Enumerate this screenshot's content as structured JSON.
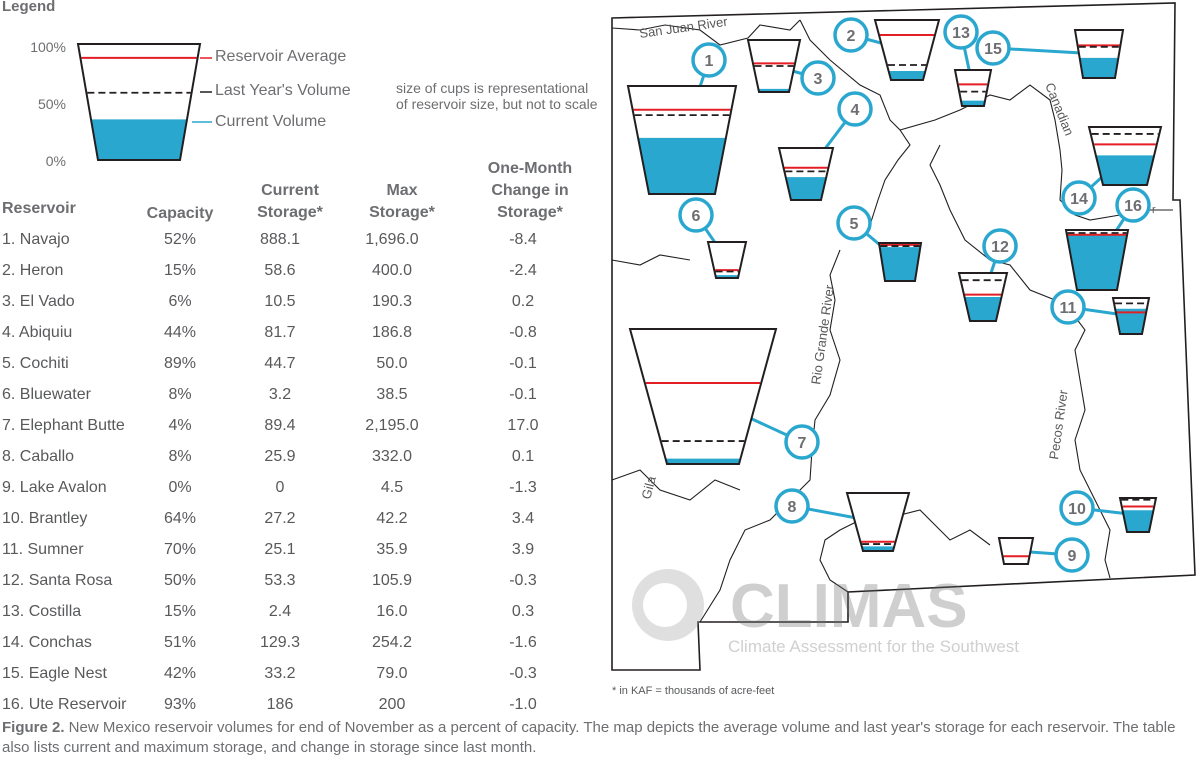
{
  "legend": {
    "title": "Legend",
    "pct_labels": [
      "100%",
      "50%",
      "0%"
    ],
    "reservoir_average": "Reservoir Average",
    "last_year": "Last Year's Volume",
    "current": "Current Volume",
    "note": "size of cups is representational of reservoir size, but not to scale",
    "sample_current_fraction": 0.35,
    "sample_average_fraction": 0.88,
    "sample_last_year_fraction": 0.58
  },
  "table": {
    "headers": {
      "reservoir": "Reservoir",
      "capacity": "Capacity",
      "current_1": "Current",
      "current_2": "Storage*",
      "max_1": "Max",
      "max_2": "Storage*",
      "change_1": "One-Month",
      "change_2": "Change in",
      "change_3": "Storage*"
    }
  },
  "chart_data": {
    "type": "table",
    "units_note": "* in KAF = thousands of acre-feet",
    "rows": [
      {
        "num": 1,
        "name": "1. Navajo",
        "capacity": "52%",
        "current": "888.1",
        "max": "1,696.0",
        "change": "-8.4"
      },
      {
        "num": 2,
        "name": "2. Heron",
        "capacity": "15%",
        "current": "58.6",
        "max": "400.0",
        "change": "-2.4"
      },
      {
        "num": 3,
        "name": "3. El Vado",
        "capacity": "6%",
        "current": "10.5",
        "max": "190.3",
        "change": "0.2"
      },
      {
        "num": 4,
        "name": "4. Abiquiu",
        "capacity": "44%",
        "current": "81.7",
        "max": "186.8",
        "change": "-0.8"
      },
      {
        "num": 5,
        "name": "5. Cochiti",
        "capacity": "89%",
        "current": "44.7",
        "max": "50.0",
        "change": "-0.1"
      },
      {
        "num": 6,
        "name": "6. Bluewater",
        "capacity": "8%",
        "current": "3.2",
        "max": "38.5",
        "change": "-0.1"
      },
      {
        "num": 7,
        "name": "7. Elephant Butte",
        "capacity": "4%",
        "current": "89.4",
        "max": "2,195.0",
        "change": "17.0"
      },
      {
        "num": 8,
        "name": "8. Caballo",
        "capacity": "8%",
        "current": "25.9",
        "max": "332.0",
        "change": "0.1"
      },
      {
        "num": 9,
        "name": "9. Lake Avalon",
        "capacity": "0%",
        "current": "0",
        "max": "4.5",
        "change": "-1.3"
      },
      {
        "num": 10,
        "name": "10. Brantley",
        "capacity": "64%",
        "current": "27.2",
        "max": "42.2",
        "change": "3.4"
      },
      {
        "num": 11,
        "name": "11. Sumner",
        "capacity": "70%",
        "current": "25.1",
        "max": "35.9",
        "change": "3.9"
      },
      {
        "num": 12,
        "name": "12. Santa Rosa",
        "capacity": "50%",
        "current": "53.3",
        "max": "105.9",
        "change": "-0.3"
      },
      {
        "num": 13,
        "name": "13. Costilla",
        "capacity": "15%",
        "current": "2.4",
        "max": "16.0",
        "change": "0.3"
      },
      {
        "num": 14,
        "name": "14. Conchas",
        "capacity": "51%",
        "current": "129.3",
        "max": "254.2",
        "change": "-1.6"
      },
      {
        "num": 15,
        "name": "15. Eagle Nest",
        "capacity": "42%",
        "current": "33.2",
        "max": "79.0",
        "change": "-0.3"
      },
      {
        "num": 16,
        "name": "16. Ute Reservoir",
        "capacity": "93%",
        "current": "186",
        "max": "200",
        "change": "-1.0"
      }
    ],
    "map_cups": [
      {
        "num": 1,
        "current": 0.52,
        "average": 0.78,
        "last_year": 0.73
      },
      {
        "num": 2,
        "current": 0.15,
        "average": 0.75,
        "last_year": 0.25
      },
      {
        "num": 3,
        "current": 0.06,
        "average": 0.55,
        "last_year": 0.5
      },
      {
        "num": 4,
        "current": 0.44,
        "average": 0.62,
        "last_year": 0.55
      },
      {
        "num": 5,
        "current": 0.89,
        "average": 0.95,
        "last_year": 0.92
      },
      {
        "num": 6,
        "current": 0.08,
        "average": 0.22,
        "last_year": 0.18
      },
      {
        "num": 7,
        "current": 0.04,
        "average": 0.6,
        "last_year": 0.17
      },
      {
        "num": 8,
        "current": 0.08,
        "average": 0.16,
        "last_year": 0.12
      },
      {
        "num": 9,
        "current": 0.0,
        "average": 0.3,
        "last_year": 0.0
      },
      {
        "num": 10,
        "current": 0.64,
        "average": 0.75,
        "last_year": 0.95
      },
      {
        "num": 11,
        "current": 0.7,
        "average": 0.6,
        "last_year": 0.85
      },
      {
        "num": 12,
        "current": 0.5,
        "average": 0.55,
        "last_year": 0.85
      },
      {
        "num": 13,
        "current": 0.15,
        "average": 0.6,
        "last_year": 0.4
      },
      {
        "num": 14,
        "current": 0.51,
        "average": 0.7,
        "last_year": 0.88
      },
      {
        "num": 15,
        "current": 0.42,
        "average": 0.68,
        "last_year": 0.65
      },
      {
        "num": 16,
        "current": 0.93,
        "average": 0.92,
        "last_year": 0.95
      }
    ]
  },
  "map": {
    "rivers": {
      "san_juan": "San Juan River",
      "canadian": "Canadian",
      "rio_grande": "Rio Grande River",
      "pecos": "Pecos River",
      "gila": "Gila",
      "ute_fragment": "r"
    },
    "watermark_title": "CLIMAS",
    "watermark_subtitle": "Climate Assessment for the Southwest"
  },
  "caption": {
    "bold": "Figure 2.",
    "text": " New Mexico reservoir volumes for end of November as a percent of capacity. The map depicts the average volume and last year's storage for each reservoir. The table also lists current and maximum storage, and change in storage since last month."
  },
  "colors": {
    "water": "#2aa7cf",
    "average": "#e31e24",
    "marker": "#2aa7cf",
    "outline": "#231f20",
    "text": "#6d6e71"
  }
}
